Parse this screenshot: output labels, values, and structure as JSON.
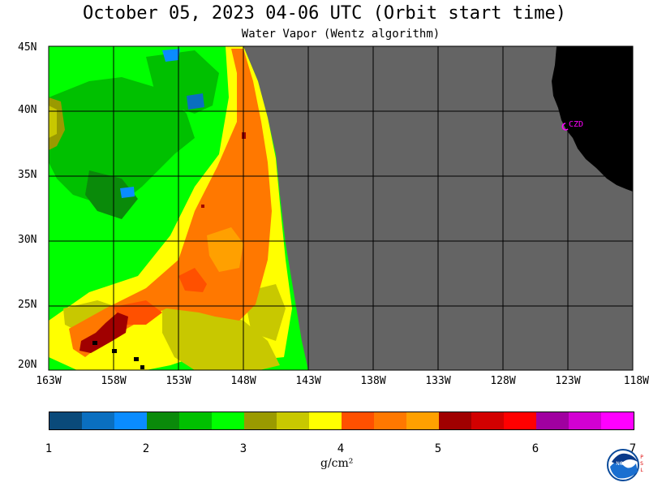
{
  "header": {
    "title": "October 05, 2023  04-06 UTC  (Orbit start time)",
    "subtitle": "Water Vapor (Wentz algorithm)"
  },
  "axes": {
    "y_labels": [
      "45N",
      "40N",
      "35N",
      "30N",
      "25N",
      "20N"
    ],
    "x_labels": [
      "163W",
      "158W",
      "153W",
      "148W",
      "143W",
      "138W",
      "133W",
      "128W",
      "123W",
      "118W"
    ]
  },
  "place_label": "CZD",
  "colorbar": {
    "colors": [
      "#0a4a7a",
      "#0a6fc0",
      "#0a8cff",
      "#0a8a0a",
      "#00c000",
      "#00ff00",
      "#9a9a00",
      "#c8c800",
      "#ffff00",
      "#ff5000",
      "#ff7800",
      "#ffa000",
      "#a00000",
      "#d20000",
      "#ff0000",
      "#a000a0",
      "#d200d2",
      "#ff00ff"
    ],
    "ticks": [
      "1",
      "2",
      "3",
      "4",
      "5",
      "6",
      "7"
    ],
    "units": "g/cm²"
  },
  "logo": {
    "name": "noaa-logo",
    "side_text": "PSL"
  }
}
